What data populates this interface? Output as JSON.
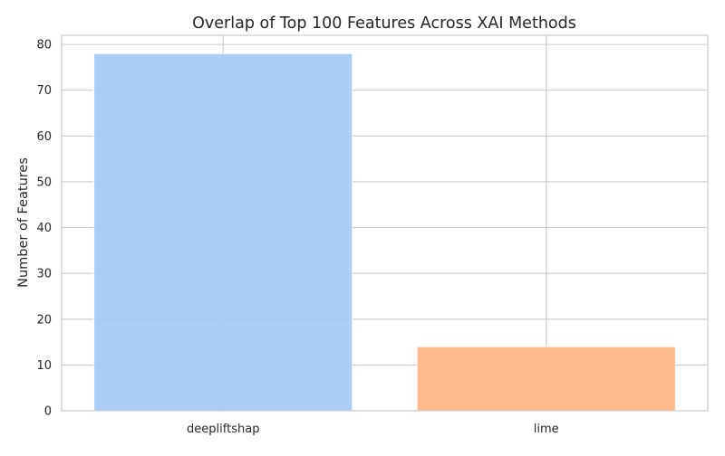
{
  "chart_data": {
    "type": "bar",
    "title": "Overlap of Top 100 Features Across XAI Methods",
    "xlabel": "",
    "ylabel": "Number of Features",
    "categories": [
      "deepliftshap",
      "lime"
    ],
    "values": [
      78,
      14
    ],
    "ylim": [
      0,
      82
    ],
    "yticks": [
      0,
      10,
      20,
      30,
      40,
      50,
      60,
      70,
      80
    ],
    "bar_colors": [
      "#a1c9f4",
      "#ffb482"
    ],
    "grid": true,
    "legend": "none"
  }
}
